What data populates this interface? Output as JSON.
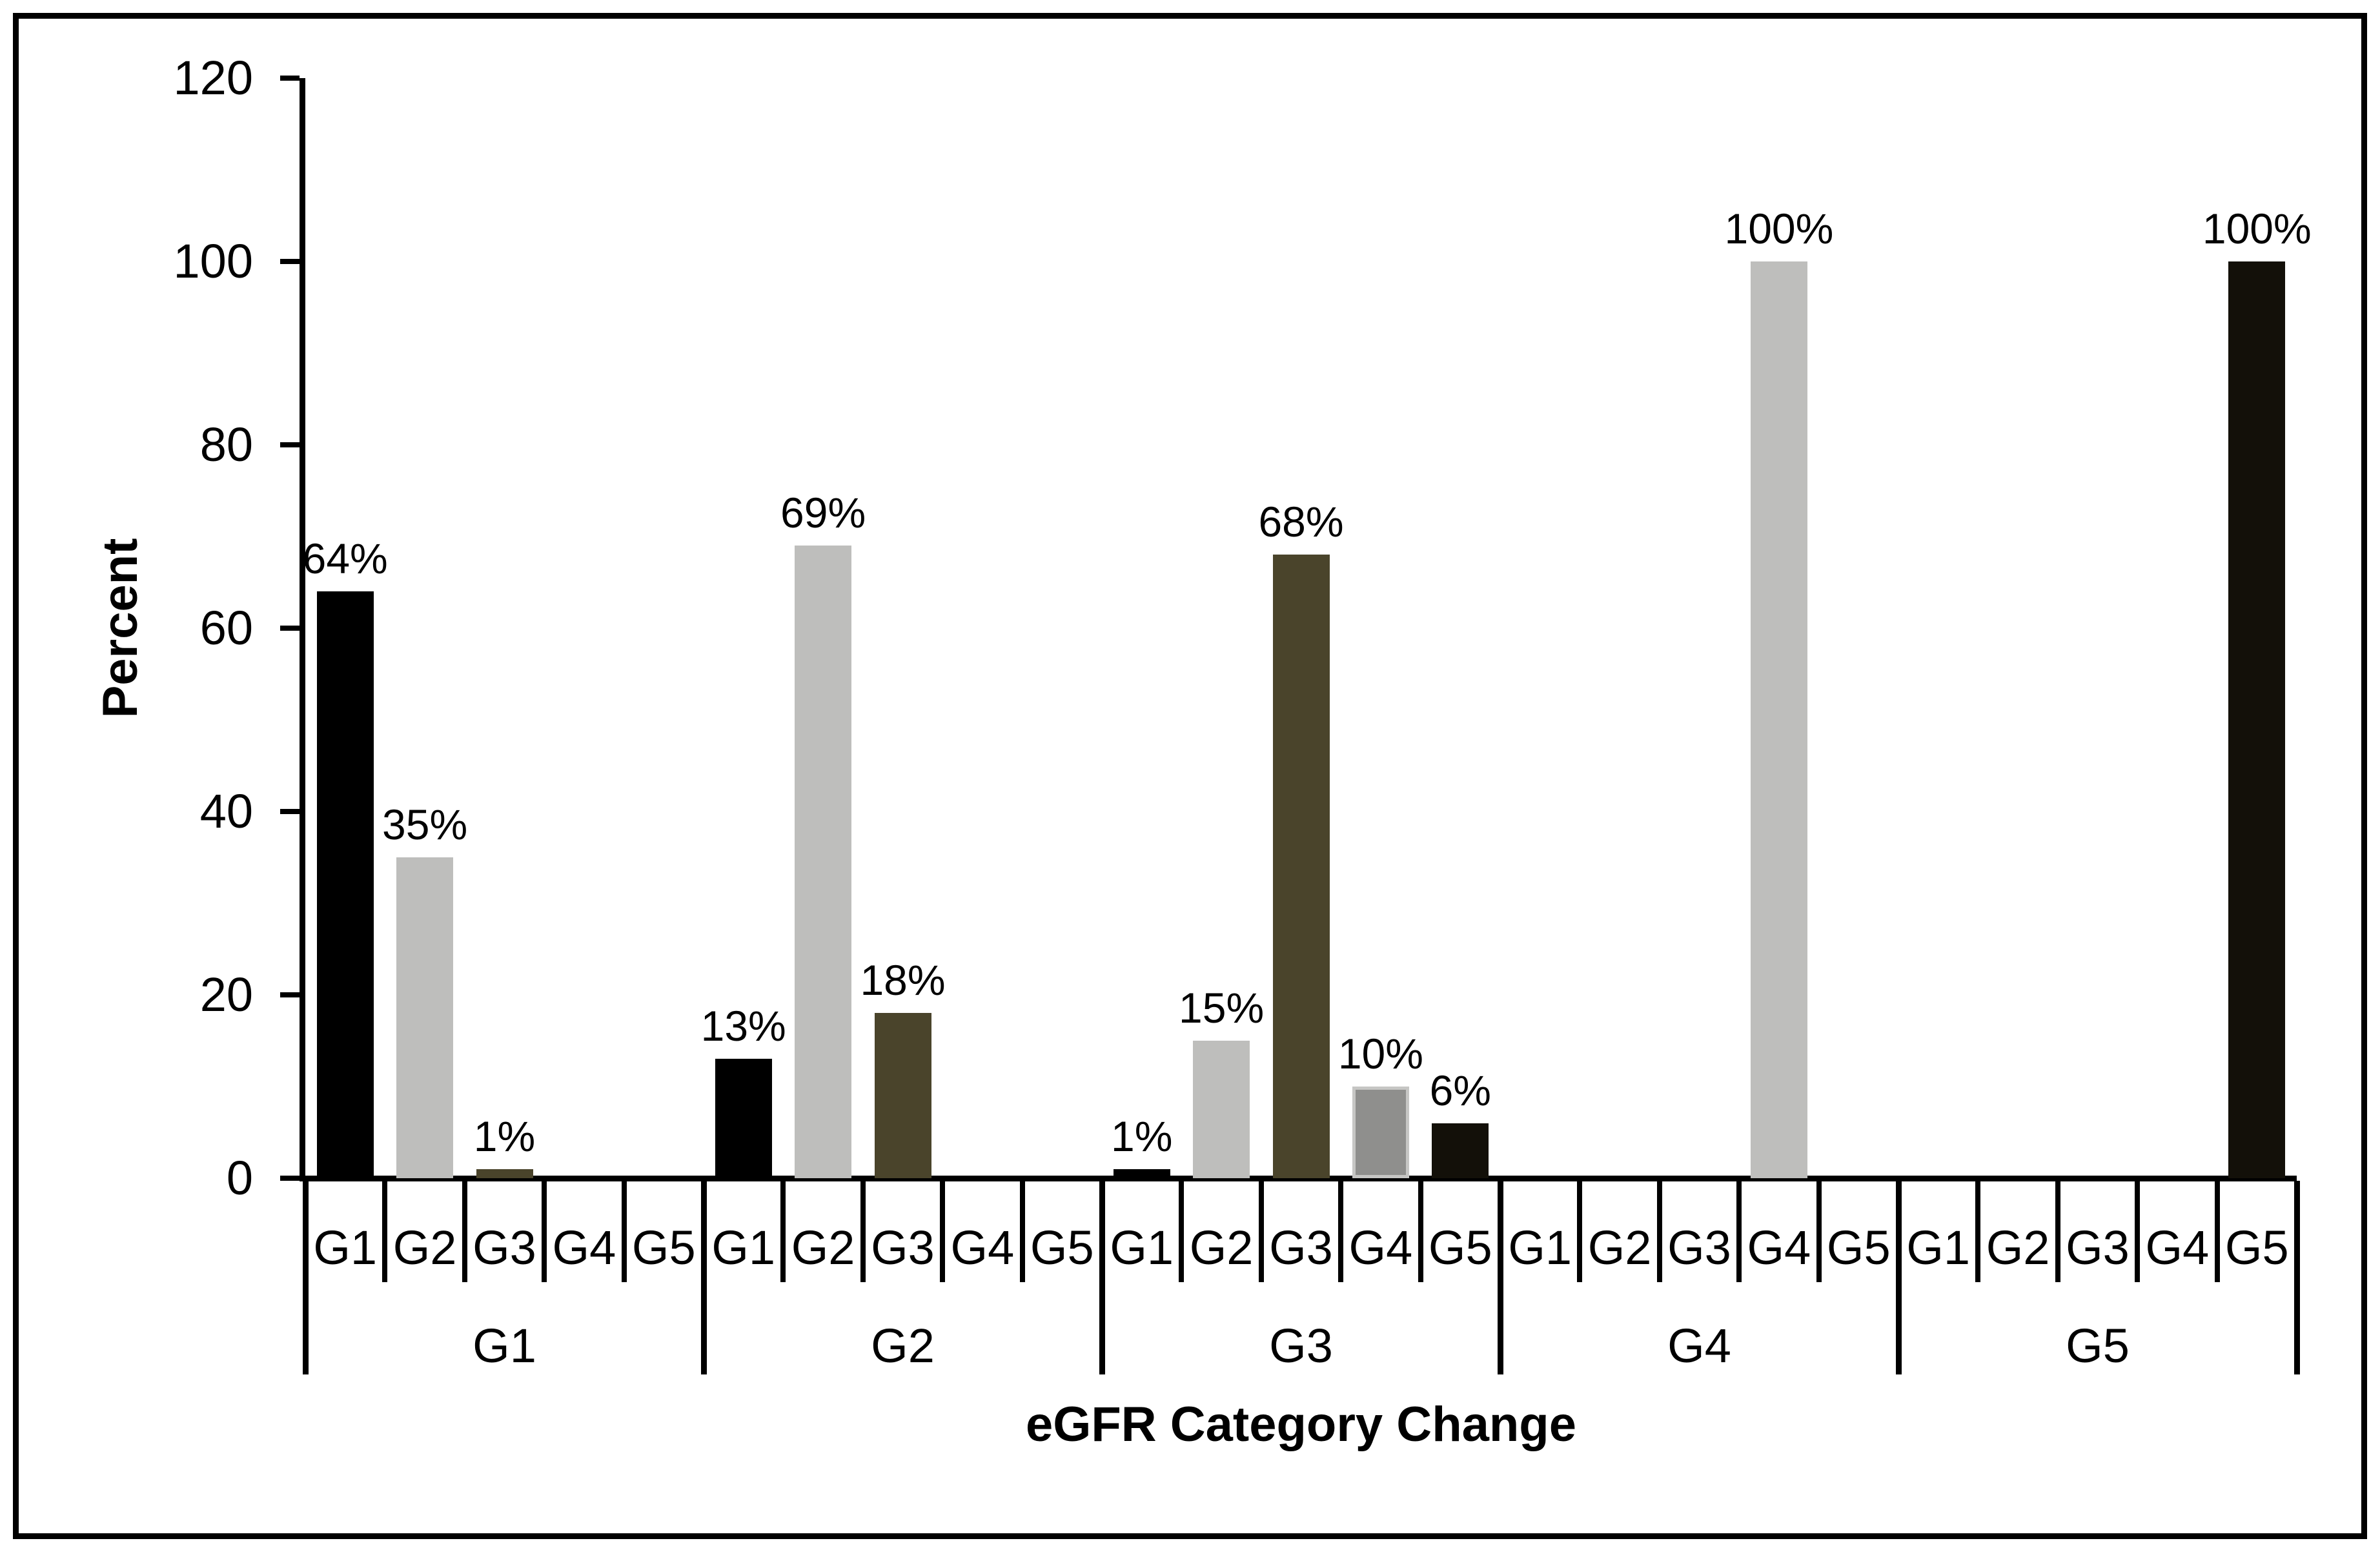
{
  "chart_data": {
    "type": "bar",
    "title": "",
    "ylabel": "Percent",
    "xlabel": "eGFR Category Change",
    "ylim": [
      0,
      120
    ],
    "yticks": [
      0,
      20,
      40,
      60,
      80,
      100,
      120
    ],
    "grid": false,
    "legend": "none",
    "axis_color": "#000000",
    "background_color": "#ffffff",
    "bar_palette": {
      "black": "#000000",
      "light_gray": "#bebebc",
      "dark_olive": "#4a442b",
      "mid_gray": "#8f8f8d",
      "mid_gray_border": "#c6c6c4",
      "near_black": "#131009"
    },
    "groups": [
      {
        "label": "G1",
        "bars": [
          {
            "category": "G1",
            "value": 64,
            "label": "64%",
            "color": "#000000"
          },
          {
            "category": "G2",
            "value": 35,
            "label": "35%",
            "color": "#bebebc"
          },
          {
            "category": "G3",
            "value": 1,
            "label": "1%",
            "color": "#4a442b"
          },
          {
            "category": "G4",
            "value": 0,
            "label": "",
            "color": null
          },
          {
            "category": "G5",
            "value": 0,
            "label": "",
            "color": null
          }
        ]
      },
      {
        "label": "G2",
        "bars": [
          {
            "category": "G1",
            "value": 13,
            "label": "13%",
            "color": "#000000"
          },
          {
            "category": "G2",
            "value": 69,
            "label": "69%",
            "color": "#bebebc"
          },
          {
            "category": "G3",
            "value": 18,
            "label": "18%",
            "color": "#4a442b"
          },
          {
            "category": "G4",
            "value": 0,
            "label": "",
            "color": null
          },
          {
            "category": "G5",
            "value": 0,
            "label": "",
            "color": null
          }
        ]
      },
      {
        "label": "G3",
        "bars": [
          {
            "category": "G1",
            "value": 1,
            "label": "1%",
            "color": "#000000"
          },
          {
            "category": "G2",
            "value": 15,
            "label": "15%",
            "color": "#bebebc"
          },
          {
            "category": "G3",
            "value": 68,
            "label": "68%",
            "color": "#4a442b"
          },
          {
            "category": "G4",
            "value": 10,
            "label": "10%",
            "color": "#8f8f8d",
            "border_color": "#c6c6c4"
          },
          {
            "category": "G5",
            "value": 6,
            "label": "6%",
            "color": "#131009"
          }
        ]
      },
      {
        "label": "G4",
        "bars": [
          {
            "category": "G1",
            "value": 0,
            "label": "",
            "color": null
          },
          {
            "category": "G2",
            "value": 0,
            "label": "",
            "color": null
          },
          {
            "category": "G3",
            "value": 0,
            "label": "",
            "color": null
          },
          {
            "category": "G4",
            "value": 100,
            "label": "100%",
            "color": "#bebebc"
          },
          {
            "category": "G5",
            "value": 0,
            "label": "",
            "color": null
          }
        ]
      },
      {
        "label": "G5",
        "bars": [
          {
            "category": "G1",
            "value": 0,
            "label": "",
            "color": null
          },
          {
            "category": "G2",
            "value": 0,
            "label": "",
            "color": null
          },
          {
            "category": "G3",
            "value": 0,
            "label": "",
            "color": null
          },
          {
            "category": "G4",
            "value": 0,
            "label": "",
            "color": null
          },
          {
            "category": "G5",
            "value": 100,
            "label": "100%",
            "color": "#131009"
          }
        ]
      }
    ]
  }
}
